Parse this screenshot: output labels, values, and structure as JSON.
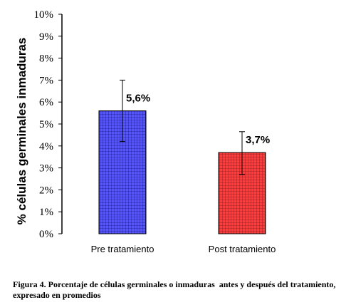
{
  "chart_data": {
    "type": "bar",
    "categories": [
      "Pre tratamiento",
      "Post tratamiento"
    ],
    "values": [
      5.6,
      3.7
    ],
    "error_upper": [
      7.0,
      4.65
    ],
    "error_lower": [
      4.2,
      2.7
    ],
    "data_labels": [
      "5,6%",
      "3,7%"
    ],
    "ylabel": "% células  germinales inmaduras",
    "ylim": [
      0,
      10
    ],
    "yticks": [
      "0%",
      "1%",
      "2%",
      "3%",
      "4%",
      "5%",
      "6%",
      "7%",
      "8%",
      "9%",
      "10%"
    ],
    "grid": false,
    "colors": [
      "#4b4bff",
      "#ff2b2b"
    ],
    "pattern": "grid-hatch"
  },
  "caption": "Figura 4. Porcentaje de células germinales o inmaduras  antes y después del tratamiento, expresado en promedios"
}
